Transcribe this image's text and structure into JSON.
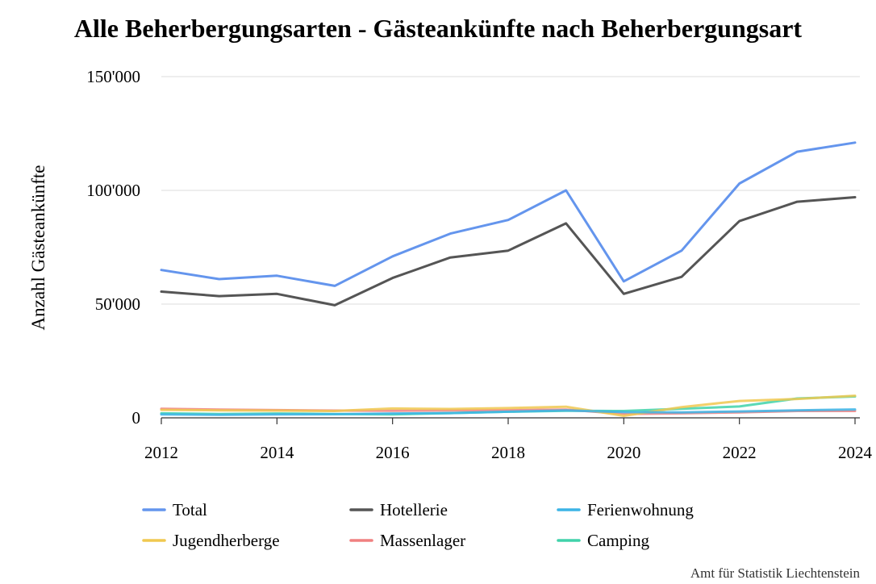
{
  "chart_data": {
    "type": "line",
    "title": "Alle Beherbergungsarten - Gästeankünfte nach Beherbergungsart",
    "xlabel": "",
    "ylabel": "Anzahl Gästeankünfte",
    "x": [
      2012,
      2013,
      2014,
      2015,
      2016,
      2017,
      2018,
      2019,
      2020,
      2021,
      2022,
      2023,
      2024
    ],
    "x_ticks": [
      "2012",
      "2014",
      "2016",
      "2018",
      "2020",
      "2022",
      "2024"
    ],
    "y_ticks": [
      "0",
      "50'000",
      "100'000",
      "150'000"
    ],
    "ylim": [
      0,
      150000
    ],
    "grid": true,
    "legend_position": "bottom",
    "series": [
      {
        "name": "Total",
        "color": "#6495ed",
        "values": [
          65000,
          61000,
          62500,
          58000,
          71000,
          81000,
          87000,
          100000,
          60000,
          73500,
          103000,
          117000,
          121000
        ]
      },
      {
        "name": "Hotellerie",
        "color": "#555555",
        "values": [
          55500,
          53500,
          54500,
          49500,
          61500,
          70500,
          73500,
          85500,
          54500,
          62000,
          86500,
          95000,
          97000
        ]
      },
      {
        "name": "Ferienwohnung",
        "color": "#3cb4e6",
        "values": [
          1500,
          1300,
          1500,
          1600,
          1900,
          2100,
          2700,
          3300,
          2500,
          2400,
          2800,
          3300,
          3700
        ]
      },
      {
        "name": "Jugendherberge",
        "color": "#f0c850",
        "values": [
          3500,
          3300,
          3200,
          3000,
          4100,
          3900,
          4300,
          4900,
          900,
          4700,
          7400,
          8300,
          9700
        ]
      },
      {
        "name": "Massenlager",
        "color": "#f08080",
        "values": [
          4000,
          3600,
          3400,
          3200,
          3100,
          3300,
          3400,
          3600,
          1700,
          2000,
          2400,
          3000,
          3000
        ]
      },
      {
        "name": "Camping",
        "color": "#40d2aa",
        "values": [
          2000,
          1700,
          1900,
          1700,
          1500,
          2100,
          2700,
          3100,
          3000,
          4000,
          5000,
          8500,
          9400
        ]
      }
    ]
  },
  "source": "Amt für Statistik Liechtenstein"
}
